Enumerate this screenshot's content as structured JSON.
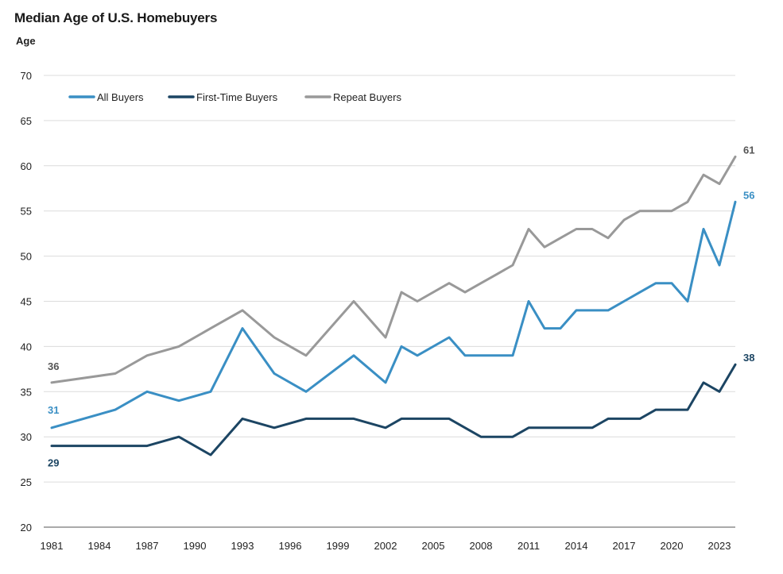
{
  "title": "Median Age of U.S. Homebuyers",
  "ylabel": "Age",
  "chart_data": {
    "type": "line",
    "title": "Median Age of U.S. Homebuyers",
    "ylabel": "Age",
    "xlabel": "",
    "ylim": [
      20,
      70
    ],
    "yticks": [
      20,
      25,
      30,
      35,
      40,
      45,
      50,
      55,
      60,
      65,
      70
    ],
    "xlim": [
      1981,
      2024
    ],
    "xticks": [
      1981,
      1984,
      1987,
      1990,
      1993,
      1996,
      1999,
      2002,
      2005,
      2008,
      2011,
      2014,
      2017,
      2020,
      2023
    ],
    "grid": "horizontal",
    "legend": "top-left",
    "series": [
      {
        "name": "All Buyers",
        "color": "#3a8fc4",
        "x": [
          1981,
          1985,
          1987,
          1989,
          1991,
          1993,
          1995,
          1997,
          2000,
          2002,
          2003,
          2004,
          2006,
          2007,
          2008,
          2009,
          2010,
          2011,
          2012,
          2013,
          2014,
          2015,
          2016,
          2017,
          2018,
          2019,
          2020,
          2021,
          2022,
          2023,
          2024
        ],
        "values": [
          31,
          33,
          35,
          34,
          35,
          42,
          37,
          35,
          39,
          36,
          40,
          39,
          41,
          39,
          39,
          39,
          39,
          45,
          42,
          42,
          44,
          44,
          44,
          45,
          46,
          47,
          47,
          45,
          53,
          49,
          56
        ],
        "end_label": "56"
      },
      {
        "name": "First-Time Buyers",
        "color": "#1c4563",
        "x": [
          1981,
          1985,
          1987,
          1989,
          1991,
          1993,
          1995,
          1997,
          2000,
          2002,
          2003,
          2004,
          2006,
          2007,
          2008,
          2009,
          2010,
          2011,
          2012,
          2013,
          2014,
          2015,
          2016,
          2017,
          2018,
          2019,
          2020,
          2021,
          2022,
          2023,
          2024
        ],
        "values": [
          29,
          29,
          29,
          30,
          28,
          32,
          31,
          32,
          32,
          31,
          32,
          32,
          32,
          31,
          30,
          30,
          30,
          31,
          31,
          31,
          31,
          31,
          32,
          32,
          32,
          33,
          33,
          33,
          36,
          35,
          38
        ],
        "end_label": "38"
      },
      {
        "name": "Repeat Buyers",
        "color": "#999999",
        "x": [
          1981,
          1985,
          1987,
          1989,
          1991,
          1993,
          1995,
          1997,
          2000,
          2002,
          2003,
          2004,
          2006,
          2007,
          2008,
          2009,
          2010,
          2011,
          2012,
          2013,
          2014,
          2015,
          2016,
          2017,
          2018,
          2019,
          2020,
          2021,
          2022,
          2023,
          2024
        ],
        "values": [
          36,
          37,
          39,
          40,
          42,
          44,
          41,
          39,
          45,
          41,
          46,
          45,
          47,
          46,
          47,
          48,
          49,
          53,
          51,
          52,
          53,
          53,
          52,
          54,
          55,
          55,
          55,
          56,
          59,
          58,
          61
        ],
        "end_label": "61"
      }
    ],
    "start_labels": [
      {
        "series": "Repeat Buyers",
        "text": "36"
      },
      {
        "series": "All Buyers",
        "text": "31"
      },
      {
        "series": "First-Time Buyers",
        "text": "29"
      }
    ]
  }
}
